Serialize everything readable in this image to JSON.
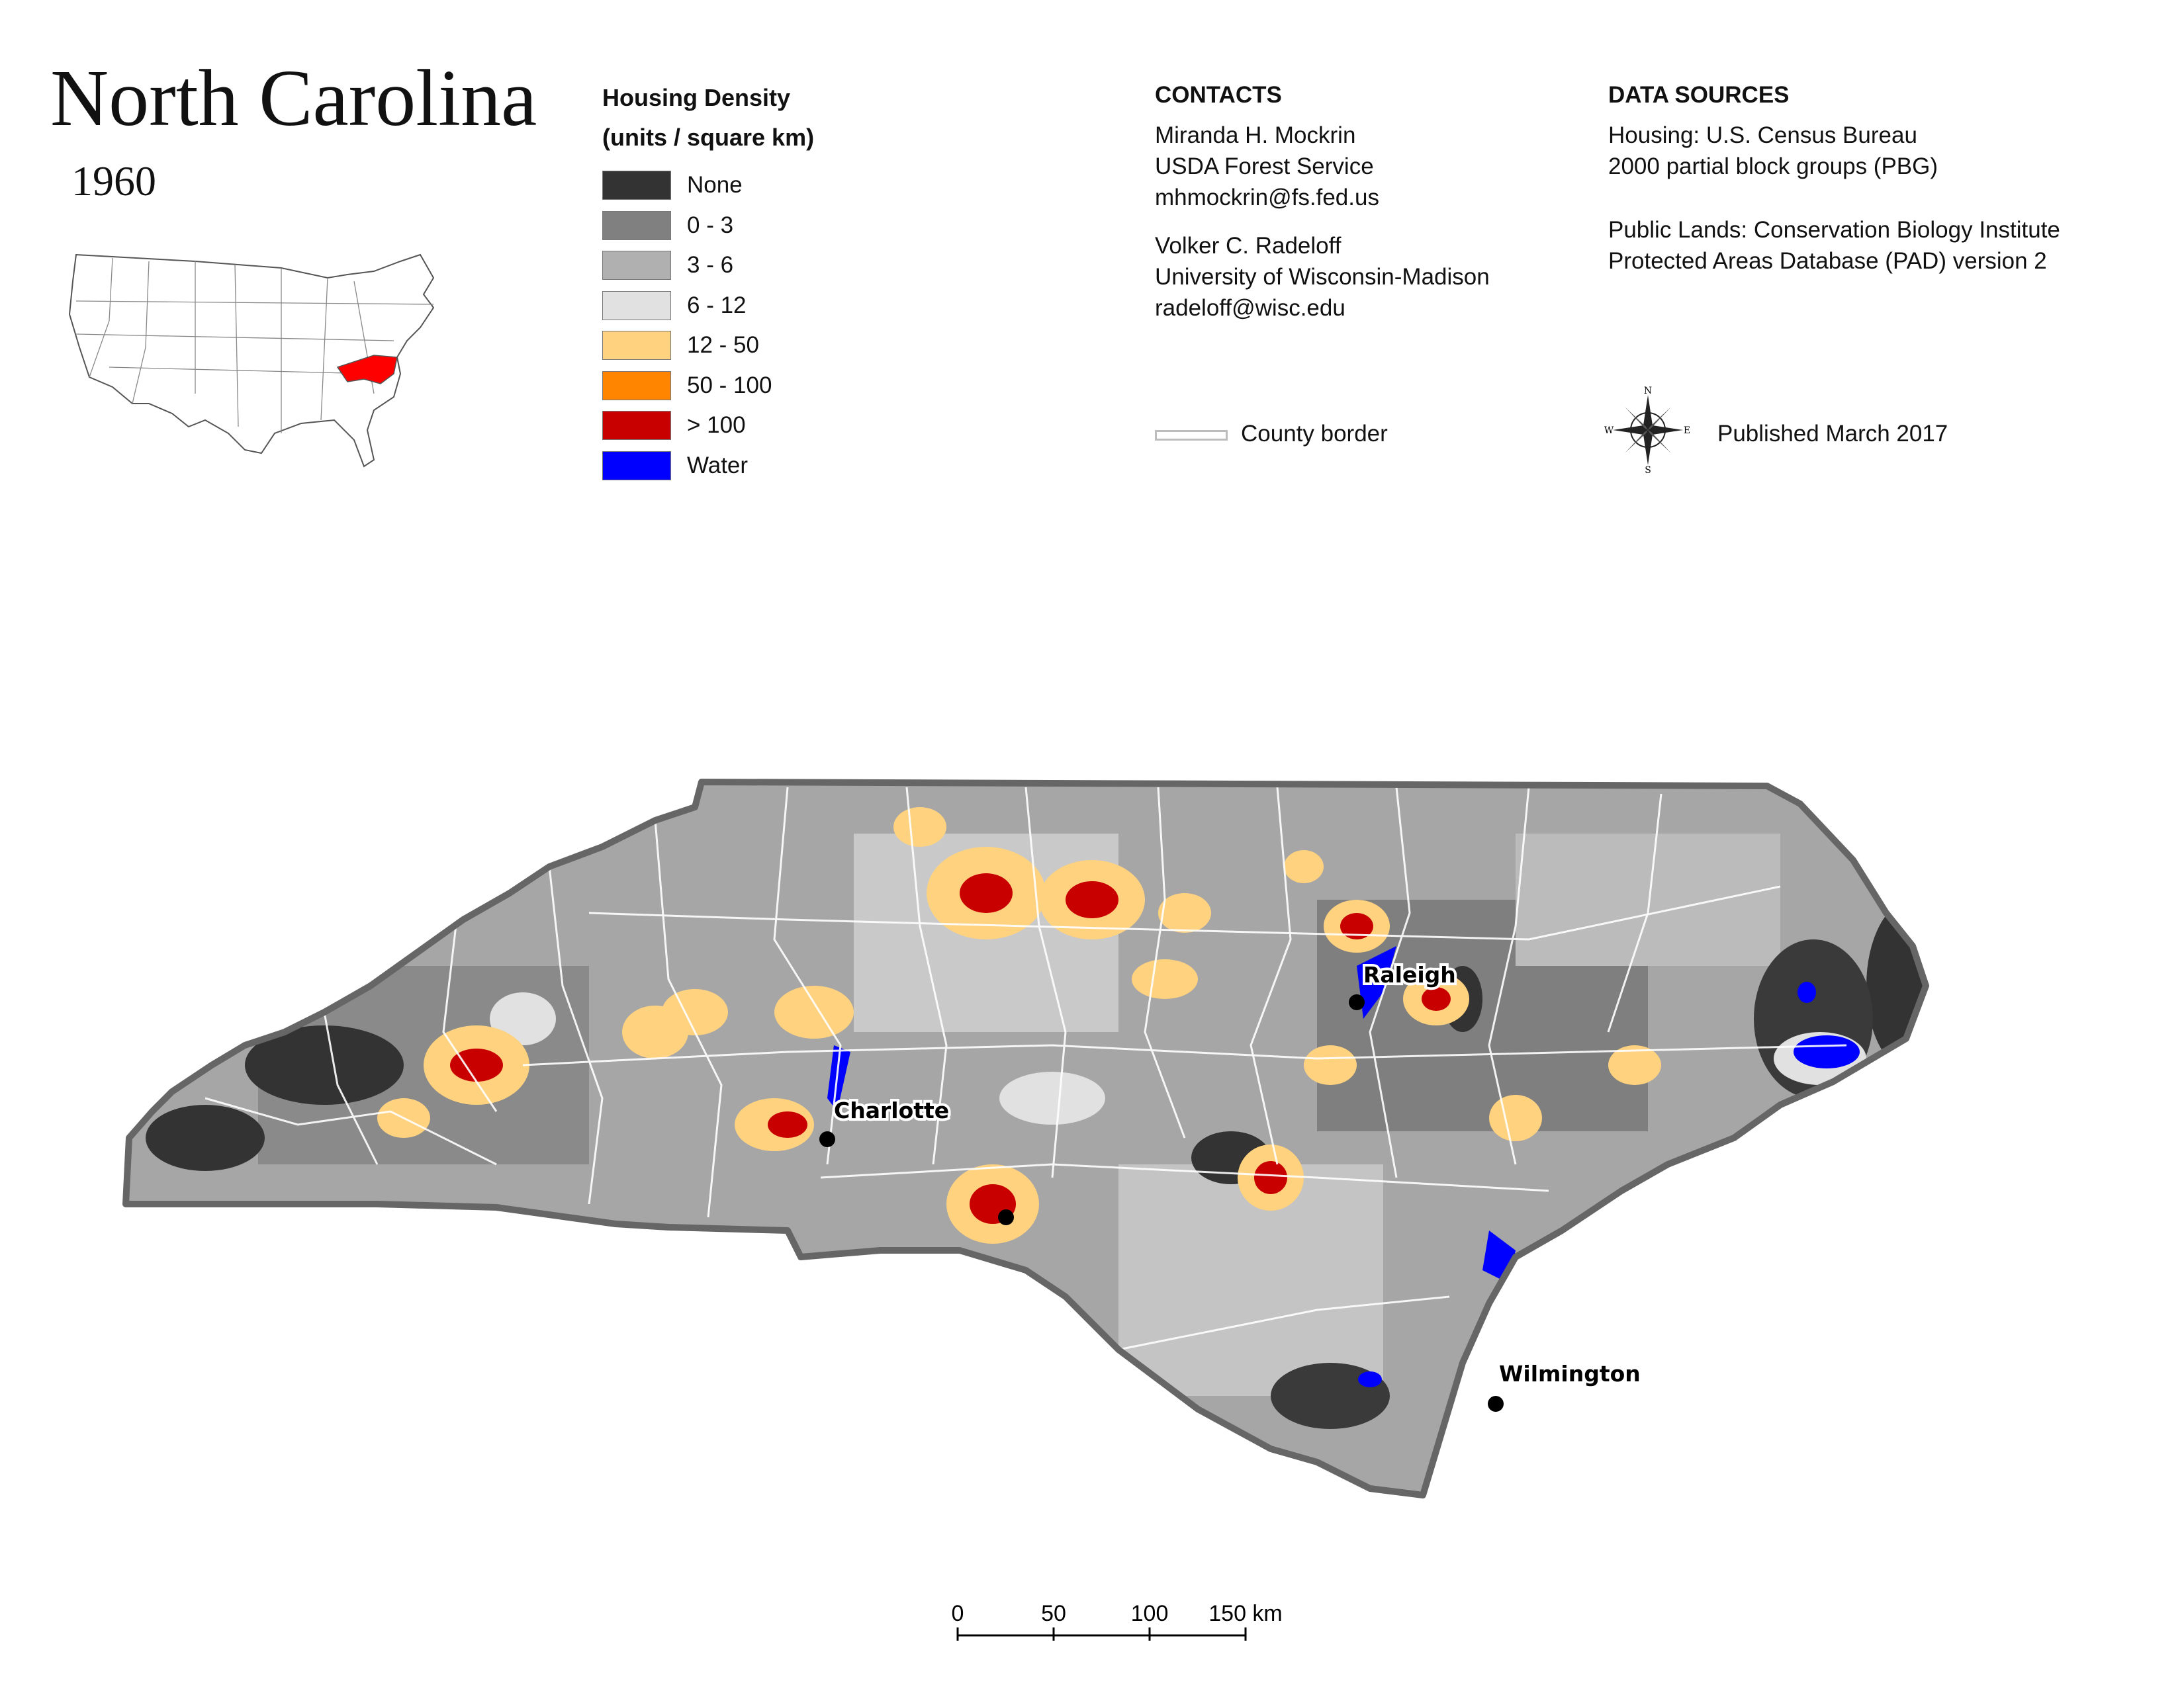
{
  "title": "North Carolina",
  "year": "1960",
  "legend": {
    "title_line1": "Housing Density",
    "title_line2": "(units / square km)",
    "items": [
      {
        "label": "None",
        "color": "#333333"
      },
      {
        "label": "0 - 3",
        "color": "#808080"
      },
      {
        "label": "3 - 6",
        "color": "#b0b0b0"
      },
      {
        "label": "6 - 12",
        "color": "#e1e1e1"
      },
      {
        "label": "12 - 50",
        "color": "#ffd27f"
      },
      {
        "label": "50 - 100",
        "color": "#ff8400"
      },
      {
        "label": "> 100",
        "color": "#c80000"
      },
      {
        "label": "Water",
        "color": "#0000ff"
      }
    ]
  },
  "contacts": {
    "heading": "CONTACTS",
    "person1": {
      "name": "Miranda H. Mockrin",
      "org": "USDA Forest Service",
      "email": "mhmockrin@fs.fed.us"
    },
    "person2": {
      "name": "Volker C. Radeloff",
      "org": "University of Wisconsin-Madison",
      "email": "radeloff@wisc.edu"
    }
  },
  "data_sources": {
    "heading": "DATA SOURCES",
    "housing_line1": "Housing: U.S. Census Bureau",
    "housing_line2": "2000 partial block groups (PBG)",
    "lands_line1": "Public Lands: Conservation Biology Institute",
    "lands_line2": "Protected Areas Database (PAD) version 2"
  },
  "county_border_label": "County border",
  "published": "Published March 2017",
  "compass": {
    "n": "N",
    "s": "S",
    "e": "E",
    "w": "W"
  },
  "cities": [
    {
      "name": "Raleigh"
    },
    {
      "name": "Charlotte"
    },
    {
      "name": "Wilmington"
    }
  ],
  "scale_bar": {
    "ticks": [
      "0",
      "50",
      "100",
      "150 km"
    ]
  },
  "colors": {
    "highlight_state": "#ff0000",
    "state_outline": "#666666",
    "county_border": "#ffffff"
  }
}
